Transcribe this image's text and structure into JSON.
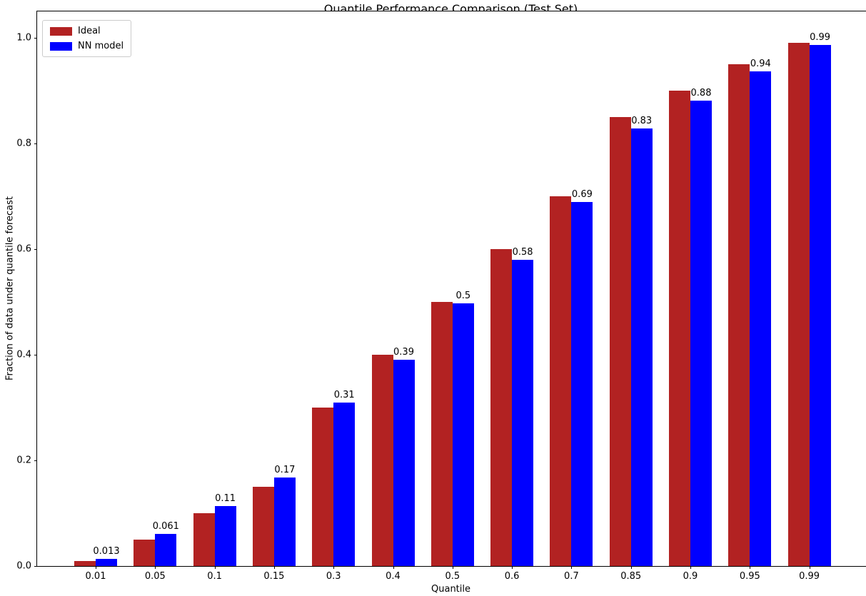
{
  "chart_data": {
    "type": "bar",
    "title": "Quantile Performance Comparison (Test Set)",
    "xlabel": "Quantile",
    "ylabel": "Fraction of data under quantile forecast",
    "categories": [
      "0.01",
      "0.05",
      "0.1",
      "0.15",
      "0.3",
      "0.4",
      "0.5",
      "0.6",
      "0.7",
      "0.85",
      "0.9",
      "0.95",
      "0.99"
    ],
    "series": [
      {
        "name": "Ideal",
        "color": "#b22222",
        "values": [
          0.01,
          0.05,
          0.1,
          0.15,
          0.3,
          0.4,
          0.5,
          0.6,
          0.7,
          0.85,
          0.9,
          0.95,
          0.99
        ]
      },
      {
        "name": "NN model",
        "color": "#0000ff",
        "values": [
          0.013,
          0.061,
          0.113,
          0.168,
          0.309,
          0.39,
          0.497,
          0.58,
          0.689,
          0.828,
          0.881,
          0.937,
          0.986
        ]
      }
    ],
    "bar_value_labels": [
      "0.013",
      "0.061",
      "0.11",
      "0.17",
      "0.31",
      "0.39",
      "0.5",
      "0.58",
      "0.69",
      "0.83",
      "0.88",
      "0.94",
      "0.99"
    ],
    "yticks": [
      "0.0",
      "0.2",
      "0.4",
      "0.6",
      "0.8",
      "1.0"
    ],
    "ylim": [
      0,
      1.05
    ],
    "grid": false,
    "legend_position": "upper left"
  }
}
